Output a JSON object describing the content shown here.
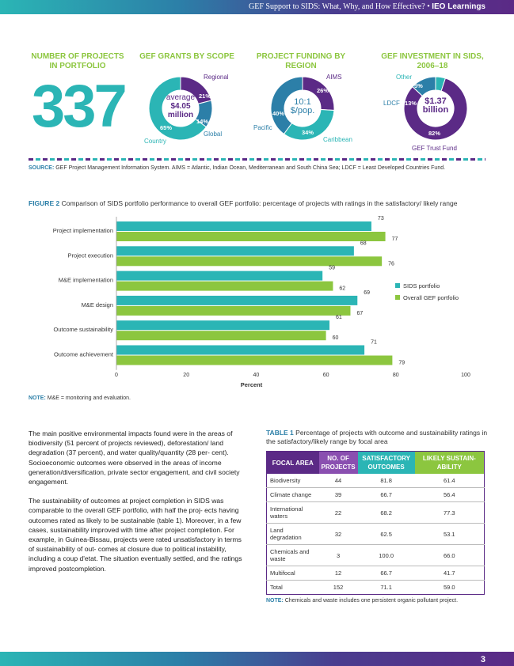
{
  "header": {
    "running_title": "GEF Support to SIDS: What, Why, and How Effective?",
    "bullet": "•",
    "series": "IEO Learnings"
  },
  "infographic": {
    "projects": {
      "title_line1": "NUMBER OF PROJECTS",
      "title_line2": "IN PORTFOLIO",
      "value": "337"
    },
    "scope": {
      "title": "GEF GRANTS BY SCOPE",
      "center_line1": "average",
      "center_line2": "$4.05",
      "center_line3": "million",
      "segments": [
        {
          "label": "Regional",
          "pct": 21,
          "pct_label": "21%",
          "color": "#5b2a86"
        },
        {
          "label": "Global",
          "pct": 14,
          "pct_label": "14%",
          "color": "#2c7fa8"
        },
        {
          "label": "Country",
          "pct": 65,
          "pct_label": "65%",
          "color": "#2bb5b5"
        }
      ]
    },
    "region": {
      "title_line1": "PROJECT FUNDING BY",
      "title_line2": "REGION",
      "center_line1": "10:1",
      "center_line2": "$/pop.",
      "segments": [
        {
          "label": "AIMS",
          "pct": 26,
          "pct_label": "26%",
          "color": "#5b2a86"
        },
        {
          "label": "Caribbean",
          "pct": 34,
          "pct_label": "34%",
          "color": "#2bb5b5"
        },
        {
          "label": "Pacific",
          "pct": 40,
          "pct_label": "40%",
          "color": "#2c7fa8"
        }
      ]
    },
    "investment": {
      "title_line1": "GEF INVESTMENT IN SIDS,",
      "title_line2": "2006–18",
      "center_line1": "$1.37",
      "center_line2": "billion",
      "segments": [
        {
          "label": "GEF Trust Fund",
          "pct": 82,
          "pct_label": "82%",
          "color": "#5b2a86"
        },
        {
          "label": "LDCF",
          "pct": 13,
          "pct_label": "13%",
          "color": "#2c7fa8"
        },
        {
          "label": "Other",
          "pct": 5,
          "pct_label": "5%",
          "color": "#2bb5b5"
        }
      ]
    },
    "source_label": "SOURCE:",
    "source_text": "GEF Project Management Information System. AIMS = Atlantic, Indian Ocean, Mediterranean and South China Sea; LDCF = Least Developed Countries Fund."
  },
  "figure": {
    "label": "FIGURE 2",
    "caption": "Comparison of SIDS portfolio performance to overall GEF portfolio: percentage of projects with ratings in the satisfactory/ likely range",
    "note_label": "NOTE:",
    "note_text": "M&E = monitoring and evaluation."
  },
  "chart_data": {
    "type": "bar",
    "orientation": "horizontal",
    "categories": [
      "Project implementation",
      "Project execution",
      "M&E implementation",
      "M&E design",
      "Outcome sustainability",
      "Outcome achievement"
    ],
    "series": [
      {
        "name": "SIDS portfolio",
        "color": "#2bb5b5",
        "values": [
          73,
          68,
          59,
          69,
          61,
          71
        ]
      },
      {
        "name": "Overall GEF portfolio",
        "color": "#8cc63f",
        "values": [
          77,
          76,
          62,
          67,
          60,
          79
        ]
      }
    ],
    "xlabel": "Percent",
    "xlim": [
      0,
      100
    ],
    "xticks": [
      0,
      20,
      40,
      60,
      80,
      100
    ],
    "legend": "right"
  },
  "body": {
    "para1": "The main positive environmental impacts found were in the areas of biodiversity (51 percent of projects reviewed), deforestation/ land degradation (37 percent), and water quality/quantity (28 per- cent). Socioeconomic outcomes were observed in the areas of income generation/diversification, private sector engagement, and civil society engagement.",
    "para2": "The sustainability of outcomes at project completion in SIDS was comparable to the overall GEF portfolio, with half the proj- ects having outcomes rated as likely to be sustainable (table 1). Moreover, in a few cases, sustainability improved with time after project completion. For example, in Guinea-Bissau, projects were rated unsatisfactory in terms of sustainability of out- comes at closure due to political instability, including a coup d'etat. The situation eventually settled, and the ratings improved postcompletion."
  },
  "table": {
    "label": "TABLE 1",
    "caption": "Percentage of projects with outcome and sustainability ratings in the satisfactory/likely range by focal area",
    "headers": [
      "FOCAL AREA",
      "NO. OF PROJECTS",
      "SATISFACTORY OUTCOMES",
      "LIKELY SUSTAIN- ABILITY"
    ],
    "rows": [
      [
        "Biodiversity",
        "44",
        "81.8",
        "61.4"
      ],
      [
        "Climate change",
        "39",
        "66.7",
        "56.4"
      ],
      [
        "International waters",
        "22",
        "68.2",
        "77.3"
      ],
      [
        "Land degradation",
        "32",
        "62.5",
        "53.1"
      ],
      [
        "Chemicals and waste",
        "3",
        "100.0",
        "66.0"
      ],
      [
        "Multifocal",
        "12",
        "66.7",
        "41.7"
      ],
      [
        "Total",
        "152",
        "71.1",
        "59.0"
      ]
    ],
    "note_label": "NOTE:",
    "note_text": "Chemicals and waste includes one persistent organic pollutant project."
  },
  "footer": {
    "page_number": "3"
  }
}
